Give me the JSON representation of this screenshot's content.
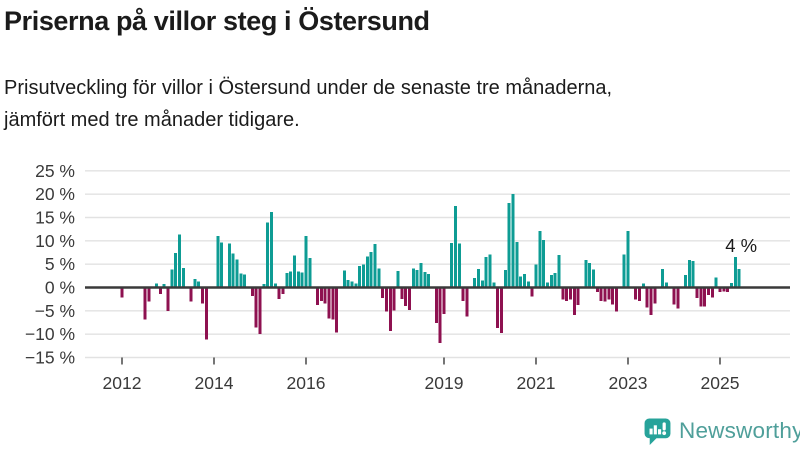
{
  "header": {
    "title": "Priserna på villor steg i Östersund",
    "subtitle": "Prisutveckling för villor i Östersund under de senaste tre månaderna,\njämfört med tre månader tidigare."
  },
  "chart_data": {
    "type": "bar",
    "title": "Prisutveckling för villor i Östersund, tre månader jämfört med tre månader tidigare",
    "unit": "%",
    "frequency": "monthly",
    "x_start": "2012-01",
    "x_end": "2025-06",
    "ylim": [
      -15,
      25
    ],
    "grid": true,
    "values": [
      -2.1,
      0,
      0,
      0,
      0,
      0,
      -6.9,
      -3.0,
      0,
      0.9,
      -1.4,
      0.7,
      -5.0,
      3.9,
      7.4,
      11.4,
      4.2,
      0,
      -3.0,
      1.8,
      1.3,
      -3.4,
      -11.1,
      0,
      0,
      11.0,
      9.6,
      0,
      9.4,
      7.3,
      6.0,
      3.0,
      2.8,
      0,
      -1.8,
      -8.6,
      -10.0,
      0.7,
      13.9,
      16.2,
      0.9,
      -2.5,
      -1.4,
      3.1,
      3.4,
      6.9,
      3.4,
      3.2,
      11.0,
      6.3,
      0,
      -3.7,
      -2.9,
      -3.4,
      -6.6,
      -6.9,
      -9.6,
      0,
      3.6,
      1.6,
      1.3,
      0.9,
      4.6,
      4.9,
      6.6,
      7.6,
      9.3,
      4.1,
      -2.3,
      -5.1,
      -9.3,
      -4.9,
      3.5,
      -2.5,
      -4.0,
      -4.8,
      4.1,
      3.7,
      5.3,
      3.3,
      2.9,
      0,
      -7.6,
      -11.9,
      -5.7,
      0,
      9.5,
      17.5,
      9.4,
      -2.9,
      -6.2,
      0,
      2.0,
      4.0,
      1.5,
      6.5,
      7.1,
      1.1,
      -8.7,
      -9.8,
      3.8,
      18.1,
      20.0,
      9.7,
      2.4,
      2.9,
      1.3,
      -1.9,
      4.9,
      12.1,
      10.2,
      1.1,
      2.7,
      3.1,
      7.0,
      -2.6,
      -2.9,
      -2.6,
      -5.9,
      -3.7,
      0,
      5.9,
      5.3,
      3.9,
      -1.0,
      -2.9,
      -3.0,
      -2.6,
      -3.6,
      -5.1,
      0,
      7.1,
      12.1,
      0,
      -2.6,
      -2.9,
      0.9,
      -4.3,
      -5.9,
      -3.4,
      0,
      4.0,
      1.1,
      0,
      -3.6,
      -4.5,
      0,
      2.7,
      5.9,
      5.7,
      -2.3,
      -4.1,
      -4.1,
      -1.6,
      -2.1,
      2.1,
      -1.0,
      -0.9,
      -1.0,
      1.0,
      6.5,
      4.0
    ],
    "yticks": [
      {
        "value": 25,
        "label": "25 %"
      },
      {
        "value": 20,
        "label": "20 %"
      },
      {
        "value": 15,
        "label": "15 %"
      },
      {
        "value": 10,
        "label": "10 %"
      },
      {
        "value": 5,
        "label": "5 %"
      },
      {
        "value": 0,
        "label": "0 %"
      },
      {
        "value": -5,
        "label": "−5 %"
      },
      {
        "value": -10,
        "label": "−10 %"
      },
      {
        "value": -15,
        "label": "−15 %"
      }
    ],
    "xticks": [
      {
        "month": 0,
        "label": "2012"
      },
      {
        "month": 24,
        "label": "2014"
      },
      {
        "month": 48,
        "label": "2016"
      },
      {
        "month": 84,
        "label": "2019"
      },
      {
        "month": 108,
        "label": "2021"
      },
      {
        "month": 132,
        "label": "2023"
      },
      {
        "month": 156,
        "label": "2025"
      }
    ],
    "annotation": {
      "text": "4 %",
      "target": "last-bar"
    },
    "legend": "none",
    "colors": {
      "positive": "#0e9c94",
      "negative": "#8e1150",
      "grid": "#e2e2e2",
      "zero_line": "#3a3a3a",
      "axis_text": "#3a3a3a",
      "annotation_text": "#1b1b1b"
    }
  },
  "footer": {
    "brand": "Newsworthy"
  }
}
